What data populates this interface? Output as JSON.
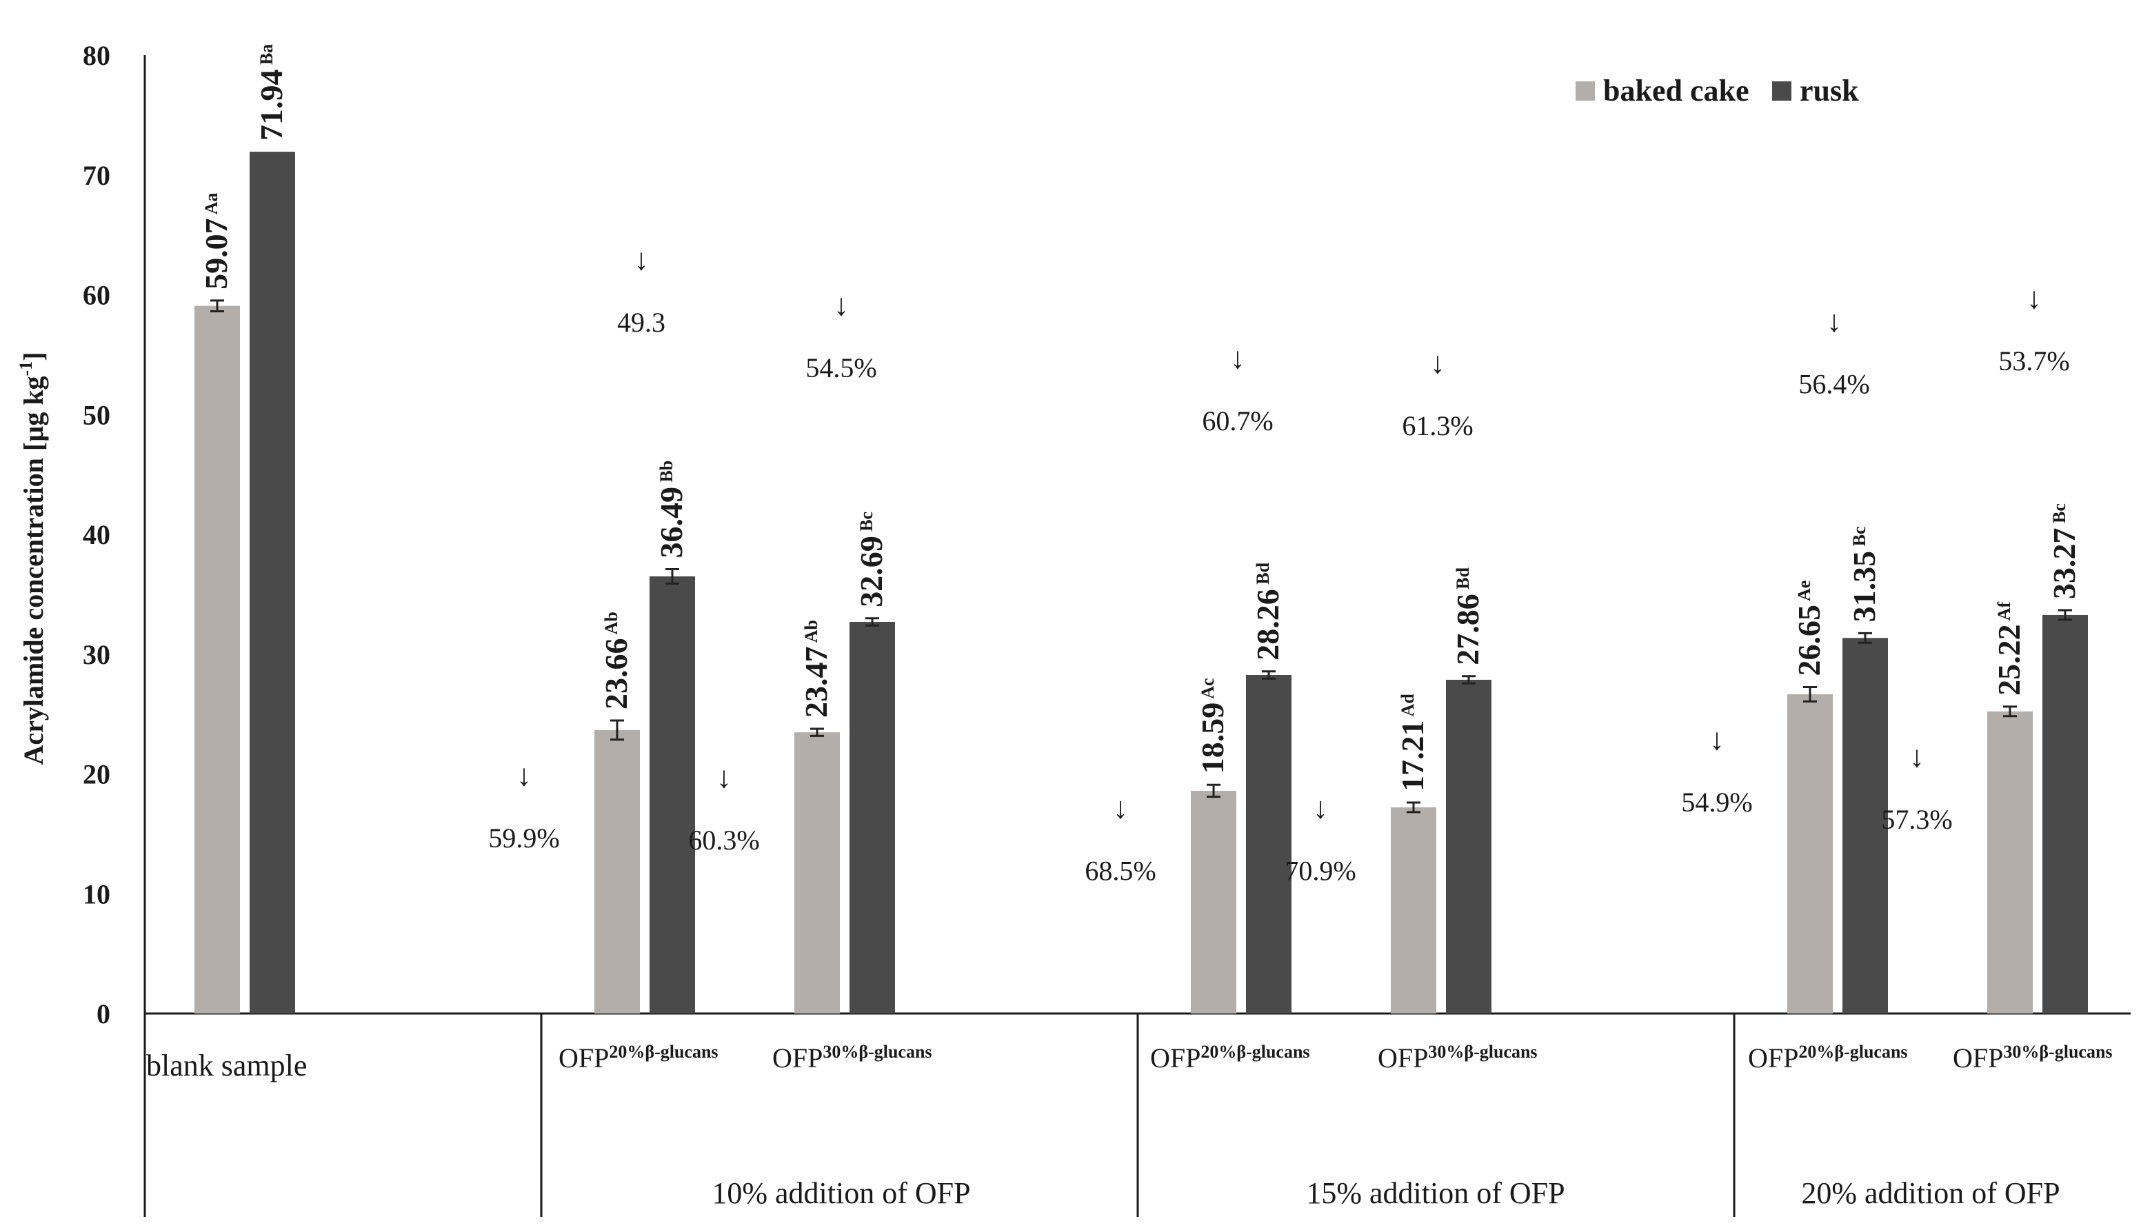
{
  "chart_data": {
    "type": "bar",
    "ylabel": "Acrylamide concentration [µg kg",
    "ylabel_sup": "-1",
    "ylabel_close": "]",
    "ylim": [
      0,
      80
    ],
    "yticks": [
      "0",
      "10",
      "20",
      "30",
      "40",
      "50",
      "60",
      "70",
      "80"
    ],
    "grid": false,
    "legend_position": "top-right",
    "colors": {
      "baked_cake": "#b3aeaa",
      "rusk": "#4a4a4a",
      "axis": "#1a1a1a"
    },
    "series": [
      {
        "key": "baked_cake",
        "name": "baked cake"
      },
      {
        "key": "rusk",
        "name": "rusk"
      }
    ],
    "group_labels": [
      "blank sample",
      "10% addition of OFP",
      "15% addition of OFP",
      "20% addition of OFP"
    ],
    "samples": [
      {
        "group": 0,
        "label_main": "",
        "label_sup": "",
        "baked_cake": {
          "value": 59.07,
          "err": 0.45,
          "label": "59.07",
          "letters": "Aa",
          "reduction": ""
        },
        "rusk": {
          "value": 71.94,
          "err": 0,
          "label": "71.94",
          "letters": "Ba",
          "reduction": ""
        }
      },
      {
        "group": 1,
        "label_main": "OFP",
        "label_sup": "20%β-glucans",
        "baked_cake": {
          "value": 23.66,
          "err": 0.8,
          "label": "23.66",
          "letters": "Ab",
          "reduction": "59.9%"
        },
        "rusk": {
          "value": 36.49,
          "err": 0.6,
          "label": "36.49",
          "letters": "Bb",
          "reduction": "49.3"
        }
      },
      {
        "group": 1,
        "label_main": "OFP",
        "label_sup": "30%β-glucans",
        "baked_cake": {
          "value": 23.47,
          "err": 0.3,
          "label": "23.47",
          "letters": "Ab",
          "reduction": "60.3%"
        },
        "rusk": {
          "value": 32.69,
          "err": 0.3,
          "label": "32.69",
          "letters": "Bc",
          "reduction": "54.5%"
        }
      },
      {
        "group": 2,
        "label_main": "OFP",
        "label_sup": "20%β-glucans",
        "baked_cake": {
          "value": 18.59,
          "err": 0.5,
          "label": "18.59",
          "letters": "Ac",
          "reduction": "68.5%"
        },
        "rusk": {
          "value": 28.26,
          "err": 0.3,
          "label": "28.26",
          "letters": "Bd",
          "reduction": "60.7%"
        }
      },
      {
        "group": 2,
        "label_main": "OFP",
        "label_sup": "30%β-glucans",
        "baked_cake": {
          "value": 17.21,
          "err": 0.4,
          "label": "17.21",
          "letters": "Ad",
          "reduction": "70.9%"
        },
        "rusk": {
          "value": 27.86,
          "err": 0.3,
          "label": "27.86",
          "letters": "Bd",
          "reduction": "61.3%"
        }
      },
      {
        "group": 3,
        "label_main": "OFP",
        "label_sup": "20%β-glucans",
        "baked_cake": {
          "value": 26.65,
          "err": 0.6,
          "label": "26.65",
          "letters": "Ae",
          "reduction": "54.9%"
        },
        "rusk": {
          "value": 31.35,
          "err": 0.4,
          "label": "31.35",
          "letters": "Bc",
          "reduction": "56.4%"
        }
      },
      {
        "group": 3,
        "label_main": "OFP",
        "label_sup": "30%β-glucans",
        "baked_cake": {
          "value": 25.22,
          "err": 0.4,
          "label": "25.22",
          "letters": "Af",
          "reduction": "57.3%"
        },
        "rusk": {
          "value": 33.27,
          "err": 0.4,
          "label": "33.27",
          "letters": "Bc",
          "reduction": "53.7%"
        }
      }
    ],
    "reduction_arrow": "↓"
  }
}
